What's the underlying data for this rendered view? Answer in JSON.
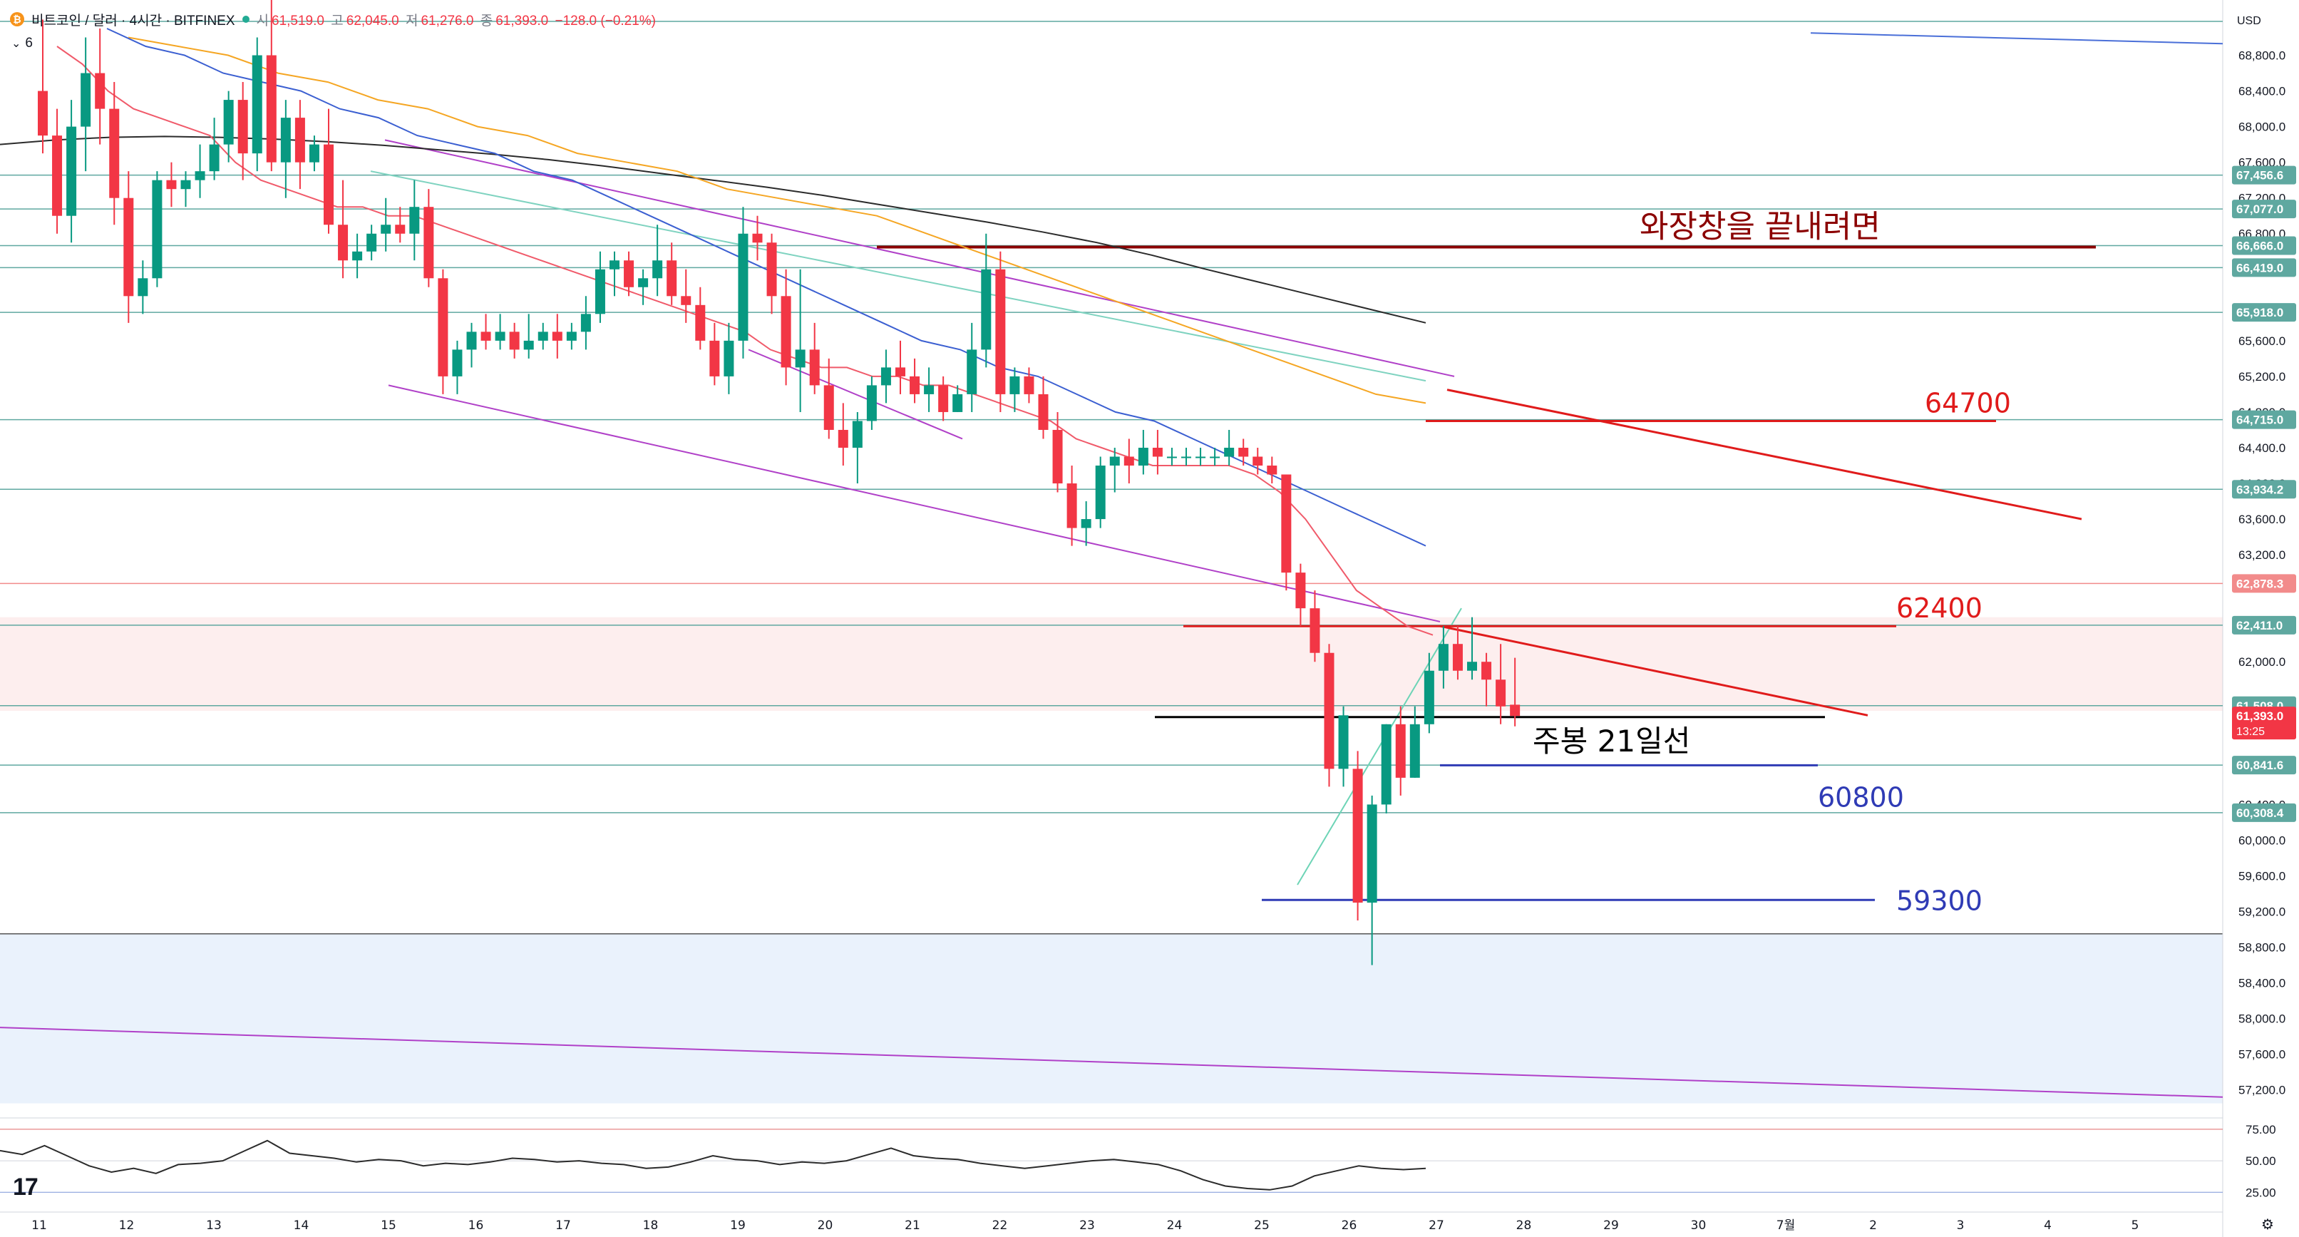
{
  "header": {
    "symbol": "비트코인 / 달러 · 4시간 · BITFINEX",
    "coin_icon": "bitcoin-icon",
    "status_color": "#22ab94",
    "open_label": "시",
    "open": "61,519.0",
    "high_label": "고",
    "high": "62,045.0",
    "low_label": "저",
    "low": "61,276.0",
    "close_label": "종",
    "close": "61,393.0",
    "change": "−128.0 (−0.21%)"
  },
  "indicator_toggle": {
    "icon": "chevron-down-icon",
    "count": "6"
  },
  "price_axis": {
    "currency": "USD",
    "ticks": [
      "68,800.0",
      "68,400.0",
      "68,000.0",
      "67,600.0",
      "67,200.0",
      "66,800.0",
      "65,600.0",
      "65,200.0",
      "64,800.0",
      "64,400.0",
      "64,000.0",
      "63,600.0",
      "63,200.0",
      "62,000.0",
      "60,400.0",
      "60,000.0",
      "59,600.0",
      "59,200.0",
      "58,800.0",
      "58,400.0",
      "58,000.0",
      "57,600.0",
      "57,200.0"
    ],
    "level_badges": [
      {
        "text": "67,456.6",
        "value": 67456.6
      },
      {
        "text": "67,077.0",
        "value": 67077.0
      },
      {
        "text": "66,666.0",
        "value": 66666.0
      },
      {
        "text": "66,419.0",
        "value": 66419.0
      },
      {
        "text": "65,918.0",
        "value": 65918.0
      },
      {
        "text": "64,715.0",
        "value": 64715.0
      },
      {
        "text": "63,934.2",
        "value": 63934.2
      },
      {
        "text": "62,878.3",
        "value": 62878.3
      },
      {
        "text": "62,411.0",
        "value": 62411.0
      },
      {
        "text": "61,508.0",
        "value": 61508.0
      },
      {
        "text": "60,841.6",
        "value": 60841.6
      },
      {
        "text": "60,308.4",
        "value": 60308.4
      }
    ],
    "current_price": "61,393.0",
    "countdown": "13:25",
    "current_color": "#f23645"
  },
  "rsi_axis": {
    "ticks": [
      "75.00",
      "50.00",
      "25.00"
    ]
  },
  "time_axis": {
    "labels": [
      "11",
      "12",
      "13",
      "14",
      "15",
      "16",
      "17",
      "18",
      "19",
      "20",
      "21",
      "22",
      "23",
      "24",
      "25",
      "26",
      "27",
      "28",
      "29",
      "30",
      "7월",
      "2",
      "3",
      "4",
      "5"
    ]
  },
  "annotations": [
    {
      "text": "와장창을 끝내려면",
      "color": "#8b0000"
    },
    {
      "text": "64700",
      "color": "#e01b1b"
    },
    {
      "text": "62400",
      "color": "#e01b1b"
    },
    {
      "text": "주봉 21일선",
      "color": "#000000"
    },
    {
      "text": "60800",
      "color": "#2f3bb5"
    },
    {
      "text": "59300",
      "color": "#2f3bb5"
    }
  ],
  "logo": "17",
  "colors": {
    "up": "#089981",
    "down": "#f23645",
    "teal_level": "#5fa8a0"
  },
  "chart_data": {
    "type": "candlestick",
    "price_range": [
      56950,
      69100
    ],
    "rsi_range": [
      15,
      80
    ],
    "candles": [
      [
        68400,
        69200,
        67700,
        67900
      ],
      [
        67900,
        68200,
        66800,
        67000
      ],
      [
        67000,
        68300,
        66700,
        68000
      ],
      [
        68000,
        69000,
        67500,
        68600
      ],
      [
        68600,
        69100,
        67800,
        68200
      ],
      [
        68200,
        68500,
        66900,
        67200
      ],
      [
        67200,
        67500,
        65800,
        66100
      ],
      [
        66100,
        66500,
        65900,
        66300
      ],
      [
        66300,
        67500,
        66200,
        67400
      ],
      [
        67400,
        67600,
        67100,
        67300
      ],
      [
        67300,
        67500,
        67100,
        67400
      ],
      [
        67400,
        67800,
        67200,
        67500
      ],
      [
        67500,
        68100,
        67400,
        67800
      ],
      [
        67800,
        68400,
        67600,
        68300
      ],
      [
        68300,
        68500,
        67400,
        67700
      ],
      [
        67700,
        69000,
        67500,
        68800
      ],
      [
        68800,
        69500,
        67500,
        67600
      ],
      [
        67600,
        68300,
        67200,
        68100
      ],
      [
        68100,
        68300,
        67300,
        67600
      ],
      [
        67600,
        67900,
        67500,
        67800
      ],
      [
        67800,
        68200,
        66800,
        66900
      ],
      [
        66900,
        67400,
        66300,
        66500
      ],
      [
        66500,
        66800,
        66300,
        66600
      ],
      [
        66600,
        66900,
        66500,
        66800
      ],
      [
        66800,
        67200,
        66600,
        66900
      ],
      [
        66900,
        67100,
        66700,
        66800
      ],
      [
        66800,
        67400,
        66500,
        67100
      ],
      [
        67100,
        67300,
        66200,
        66300
      ],
      [
        66300,
        66400,
        65000,
        65200
      ],
      [
        65200,
        65600,
        65000,
        65500
      ],
      [
        65500,
        65800,
        65300,
        65700
      ],
      [
        65700,
        65900,
        65500,
        65600
      ],
      [
        65600,
        65900,
        65500,
        65700
      ],
      [
        65700,
        65800,
        65400,
        65500
      ],
      [
        65500,
        65900,
        65400,
        65600
      ],
      [
        65600,
        65800,
        65500,
        65700
      ],
      [
        65700,
        65900,
        65400,
        65600
      ],
      [
        65600,
        65800,
        65500,
        65700
      ],
      [
        65700,
        66100,
        65500,
        65900
      ],
      [
        65900,
        66600,
        65800,
        66400
      ],
      [
        66400,
        66600,
        66100,
        66500
      ],
      [
        66500,
        66600,
        66100,
        66200
      ],
      [
        66200,
        66400,
        66000,
        66300
      ],
      [
        66300,
        66900,
        66100,
        66500
      ],
      [
        66500,
        66700,
        66000,
        66100
      ],
      [
        66100,
        66400,
        65800,
        66000
      ],
      [
        66000,
        66200,
        65500,
        65600
      ],
      [
        65600,
        65800,
        65100,
        65200
      ],
      [
        65200,
        65800,
        65000,
        65600
      ],
      [
        65600,
        67100,
        65400,
        66800
      ],
      [
        66800,
        67000,
        66500,
        66700
      ],
      [
        66700,
        66800,
        65900,
        66100
      ],
      [
        66100,
        66400,
        65100,
        65300
      ],
      [
        65300,
        66400,
        64800,
        65500
      ],
      [
        65500,
        65800,
        65000,
        65100
      ],
      [
        65100,
        65400,
        64500,
        64600
      ],
      [
        64600,
        64900,
        64200,
        64400
      ],
      [
        64400,
        64800,
        64000,
        64700
      ],
      [
        64700,
        65200,
        64600,
        65100
      ],
      [
        65100,
        65500,
        64900,
        65300
      ],
      [
        65300,
        65600,
        65000,
        65200
      ],
      [
        65200,
        65400,
        64900,
        65000
      ],
      [
        65000,
        65300,
        64800,
        65100
      ],
      [
        65100,
        65200,
        64700,
        64800
      ],
      [
        64800,
        65100,
        64800,
        65000
      ],
      [
        65000,
        65800,
        64800,
        65500
      ],
      [
        65500,
        66800,
        65300,
        66400
      ],
      [
        66400,
        66600,
        64800,
        65000
      ],
      [
        65000,
        65300,
        64800,
        65200
      ],
      [
        65200,
        65300,
        64900,
        65000
      ],
      [
        65000,
        65200,
        64500,
        64600
      ],
      [
        64600,
        64800,
        63900,
        64000
      ],
      [
        64000,
        64200,
        63300,
        63500
      ],
      [
        63500,
        63800,
        63300,
        63600
      ],
      [
        63600,
        64300,
        63500,
        64200
      ],
      [
        64200,
        64400,
        63900,
        64300
      ],
      [
        64300,
        64500,
        64000,
        64200
      ],
      [
        64200,
        64600,
        64100,
        64400
      ],
      [
        64400,
        64600,
        64100,
        64300
      ],
      [
        64300,
        64400,
        64200,
        64300
      ],
      [
        64300,
        64400,
        64200,
        64300
      ],
      [
        64300,
        64400,
        64200,
        64300
      ],
      [
        64300,
        64400,
        64200,
        64300
      ],
      [
        64300,
        64600,
        64200,
        64400
      ],
      [
        64400,
        64500,
        64200,
        64300
      ],
      [
        64300,
        64400,
        64100,
        64200
      ],
      [
        64200,
        64300,
        64000,
        64100
      ],
      [
        64100,
        64100,
        62800,
        63000
      ],
      [
        63000,
        63100,
        62400,
        62600
      ],
      [
        62600,
        62800,
        62000,
        62100
      ],
      [
        62100,
        62200,
        60600,
        60800
      ],
      [
        60800,
        61500,
        60600,
        61400
      ],
      [
        60800,
        61000,
        59100,
        59300
      ],
      [
        59300,
        60500,
        58600,
        60400
      ],
      [
        60400,
        61300,
        60300,
        61300
      ],
      [
        61300,
        61500,
        60500,
        60700
      ],
      [
        60700,
        61500,
        60700,
        61300
      ],
      [
        61300,
        62100,
        61200,
        61900
      ],
      [
        61900,
        62400,
        61700,
        62200
      ],
      [
        62200,
        62400,
        61800,
        61900
      ],
      [
        61900,
        62500,
        61800,
        62000
      ],
      [
        62000,
        62100,
        61500,
        61800
      ],
      [
        61800,
        62200,
        61300,
        61500
      ],
      [
        61519,
        62045,
        61276,
        61393
      ]
    ],
    "ma_fast": [
      68900,
      68700,
      68400,
      68200,
      68100,
      68000,
      67900,
      67600,
      67400,
      67300,
      67200,
      67100,
      67100,
      67000,
      67000,
      66900,
      66800,
      66700,
      66600,
      66500,
      66400,
      66300,
      66200,
      66100,
      66000,
      65900,
      65800,
      65700,
      65500,
      65400,
      65300,
      65300,
      65200,
      65200,
      65100,
      65100,
      65000,
      64900,
      64800,
      64700,
      64500,
      64400,
      64300,
      64200,
      64200,
      64200,
      64200,
      64100,
      63900,
      63600,
      63200,
      62800,
      62600,
      62400,
      62300
    ],
    "ma_20": [
      69100,
      68900,
      68800,
      68600,
      68500,
      68400,
      68200,
      68100,
      67900,
      67800,
      67700,
      67500,
      67400,
      67200,
      67000,
      66800,
      66600,
      66400,
      66200,
      66000,
      65800,
      65600,
      65500,
      65300,
      65200,
      65000,
      64800,
      64700,
      64500,
      64300,
      64100,
      63900,
      63700,
      63500,
      63300
    ],
    "ma_50": [
      69000,
      68900,
      68800,
      68600,
      68500,
      68300,
      68200,
      68000,
      67900,
      67700,
      67600,
      67500,
      67300,
      67200,
      67100,
      67000,
      66800,
      66600,
      66400,
      66200,
      66000,
      65800,
      65600,
      65400,
      65200,
      65000,
      64900
    ],
    "ma_200": [
      67800,
      67850,
      67880,
      67890,
      67880,
      67860,
      67830,
      67790,
      67740,
      67690,
      67630,
      67560,
      67480,
      67400,
      67320,
      67230,
      67130,
      67030,
      66930,
      66820,
      66700,
      66560,
      66400,
      66250,
      66100,
      65950,
      65800
    ],
    "rsi": [
      58,
      55,
      62,
      54,
      46,
      41,
      44,
      40,
      47,
      48,
      50,
      58,
      66,
      56,
      54,
      52,
      49,
      51,
      50,
      46,
      48,
      47,
      49,
      52,
      51,
      49,
      50,
      48,
      47,
      44,
      45,
      49,
      54,
      51,
      50,
      47,
      49,
      48,
      50,
      55,
      60,
      54,
      52,
      51,
      48,
      46,
      44,
      46,
      48,
      50,
      51,
      49,
      47,
      42,
      35,
      30,
      28,
      27,
      30,
      38,
      42,
      46,
      44,
      43,
      44
    ]
  }
}
